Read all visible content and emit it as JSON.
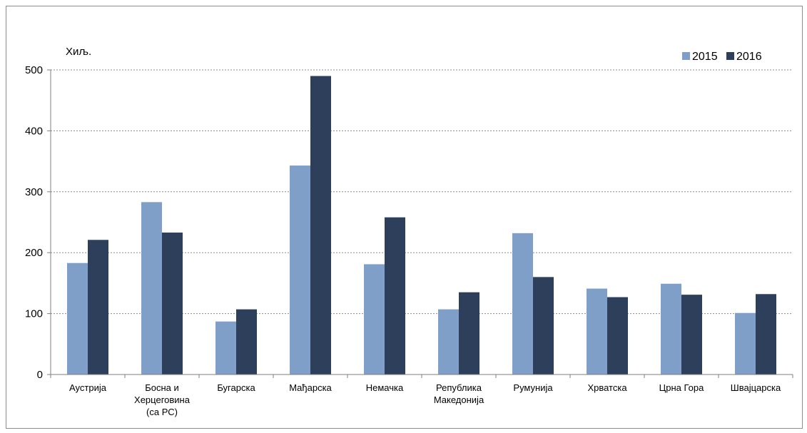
{
  "chart_data": {
    "type": "bar",
    "title": "",
    "unit_label": "Хиљ.",
    "xlabel": "",
    "ylabel": "",
    "ylim": [
      0,
      500
    ],
    "yticks": [
      0,
      100,
      200,
      300,
      400,
      500
    ],
    "grid": true,
    "legend_position": "top-right",
    "categories": [
      [
        "Аустрија"
      ],
      [
        "Босна и",
        "Херцеговина",
        "(са РС)"
      ],
      [
        "Бугарска"
      ],
      [
        "Мађарска"
      ],
      [
        "Немачка"
      ],
      [
        "Република",
        "Македонија"
      ],
      [
        "Румунија"
      ],
      [
        "Хрватска"
      ],
      [
        "Црна Гора"
      ],
      [
        "Швајцарска"
      ]
    ],
    "series": [
      {
        "name": "2015",
        "color": "#7f9fc9",
        "values": [
          183,
          283,
          87,
          343,
          181,
          107,
          232,
          141,
          149,
          101
        ]
      },
      {
        "name": "2016",
        "color": "#2e3f5b",
        "values": [
          221,
          233,
          107,
          490,
          258,
          135,
          160,
          127,
          131,
          132
        ]
      }
    ]
  }
}
